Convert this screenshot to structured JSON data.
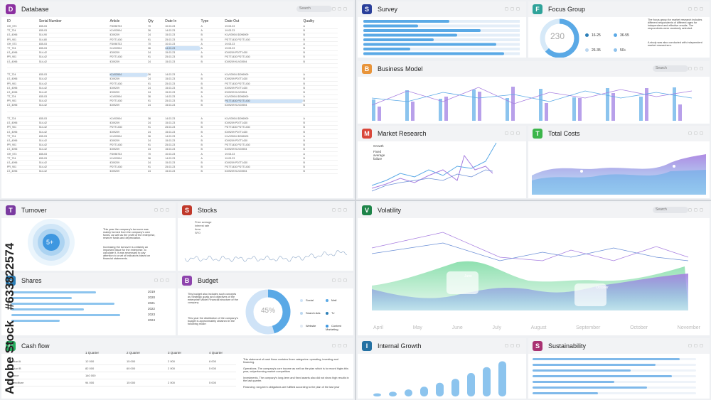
{
  "colors": {
    "blue": "#5aa9e6",
    "purple": "#a77ee0",
    "green": "#8fe0b0",
    "db": "#8b2fa0",
    "survey": "#2a3f9a",
    "focus": "#2fa39a",
    "business": "#e8943a",
    "market": "#d9473a",
    "costs": "#3bb54a",
    "turnover": "#7a3aa0",
    "stocks": "#c0392b",
    "shares": "#2c7fb8",
    "budget": "#8e44ad",
    "cashflow": "#27ae60",
    "volatility": "#1e8449",
    "growth": "#2471a3",
    "sustain": "#a93272"
  },
  "database": {
    "badge": "D",
    "title": "Database",
    "search": "Search",
    "columns": [
      "ID",
      "Serial Number",
      "Article",
      "Qty",
      "Date In",
      "Type",
      "Date Out",
      "Quality"
    ],
    "rows": [
      [
        "GH_573",
        "835-03",
        "FD098733",
        "70",
        "10.03.23",
        "A",
        "19.03.23",
        "A"
      ],
      [
        "TT_724",
        "835-03",
        "KLV03904",
        "36",
        "14.03.23",
        "A",
        "19.03.23",
        "B"
      ],
      [
        "LS_4096",
        "514-90",
        "ID09209",
        "24",
        "15.03.23",
        "B",
        "KLV03904 ID096909",
        "B"
      ],
      [
        "PR_901",
        "514-80",
        "PD7T1430",
        "91",
        "25.03.23",
        "B",
        "PD7T1430 PD7T1430",
        "B"
      ],
      [
        "GH_573",
        "835-03",
        "FD098733",
        "70",
        "10.03.23",
        "A",
        "19.03.23",
        "A"
      ],
      [
        "TT_724",
        "835-03",
        "KLV03904",
        "36",
        "14.03.23",
        "A",
        "19.03.23",
        "B"
      ],
      [
        "LS_4096",
        "514-42",
        "ID09209",
        "24",
        "15.03.23",
        "A",
        "ID09209 PD7T1430",
        "B"
      ],
      [
        "PR_901",
        "514-42",
        "PD7T1430",
        "91",
        "25.03.23",
        "B",
        "PD7T1430 PD7T1430",
        "B"
      ],
      [
        "LS_4096",
        "514-42",
        "ID09209",
        "24",
        "15.03.23",
        "B",
        "ID09209 KLV03904",
        "B"
      ],
      [
        "",
        "",
        "",
        "",
        "",
        "",
        "",
        ""
      ],
      [
        "",
        "",
        "",
        "",
        "",
        "",
        "",
        ""
      ],
      [
        "TT_724",
        "835-03",
        "KLV03904",
        "36",
        "14.03.23",
        "A",
        "KLV03904 ID096909",
        "A"
      ],
      [
        "LS_4096",
        "514-42",
        "ID09209",
        "24",
        "15.03.23",
        "B",
        "ID09209 PD7T1430",
        "B"
      ],
      [
        "PR_901",
        "514-42",
        "PD7T1430",
        "91",
        "25.03.23",
        "B",
        "PD7T1430 PD7T1430",
        "B"
      ],
      [
        "LS_4096",
        "514-42",
        "ID09209",
        "24",
        "15.03.23",
        "B",
        "ID09209 PD7T1430",
        "B"
      ],
      [
        "LS_4096",
        "514-42",
        "ID09209",
        "24",
        "15.03.23",
        "B",
        "ID09209 KLV03904",
        "B"
      ],
      [
        "TT_724",
        "835-03",
        "KLV03904",
        "36",
        "14.03.23",
        "A",
        "KLV03904 ID096909",
        "A"
      ],
      [
        "PR_901",
        "514-42",
        "PD7T1430",
        "91",
        "25.03.23",
        "B",
        "PD7T1430 PD7T1430",
        "B"
      ],
      [
        "LS_4096",
        "514-42",
        "ID09209",
        "24",
        "15.03.23",
        "B",
        "ID09209 KLV03904",
        "B"
      ],
      [
        "",
        "",
        "",
        "",
        "",
        "",
        "",
        ""
      ],
      [
        "",
        "",
        "",
        "",
        "",
        "",
        "",
        ""
      ],
      [
        "TT_724",
        "835-03",
        "KLV03904",
        "36",
        "14.03.23",
        "A",
        "KLV03904 ID096909",
        "A"
      ],
      [
        "LS_4096",
        "514-42",
        "ID09209",
        "24",
        "15.03.23",
        "B",
        "ID09209 PD7T1430",
        "B"
      ],
      [
        "PR_901",
        "514-42",
        "PD7T1430",
        "91",
        "25.03.23",
        "B",
        "PD7T1430 PD7T1430",
        "B"
      ],
      [
        "LS_4096",
        "514-42",
        "ID09209",
        "24",
        "15.03.23",
        "B",
        "ID09209 PD7T1430",
        "B"
      ],
      [
        "TT_724",
        "835-03",
        "KLV03904",
        "36",
        "14.03.23",
        "A",
        "KLV03904 ID096909",
        "A"
      ],
      [
        "LS_4096",
        "514-42",
        "ID09209",
        "24",
        "15.03.23",
        "B",
        "ID09209 PD7T1430",
        "B"
      ],
      [
        "PR_901",
        "514-42",
        "PD7T1430",
        "91",
        "25.03.23",
        "B",
        "PD7T1430 PD7T1430",
        "B"
      ],
      [
        "LS_4096",
        "514-42",
        "ID09209",
        "24",
        "15.03.23",
        "B",
        "ID09209 KLV03904",
        "B"
      ],
      [
        "GH_573",
        "835-03",
        "FD098733",
        "70",
        "10.03.23",
        "A",
        "19.03.23",
        "A"
      ],
      [
        "TT_724",
        "835-03",
        "KLV03904",
        "36",
        "14.03.23",
        "A",
        "19.03.23",
        "B"
      ],
      [
        "LS_4096",
        "514-42",
        "ID09209",
        "24",
        "15.03.23",
        "B",
        "ID09209 PD7T1430",
        "B"
      ],
      [
        "PR_901",
        "514-42",
        "PD7T1430",
        "91",
        "25.03.23",
        "B",
        "PD7T1430 PD7T1430",
        "B"
      ],
      [
        "LS_4096",
        "514-42",
        "ID09209",
        "24",
        "15.03.23",
        "B",
        "ID09209 KLV03904",
        "B"
      ]
    ]
  },
  "survey": {
    "badge": "S",
    "title": "Survey",
    "bars": [
      0.55,
      0.35,
      0.75,
      0.6,
      0.45,
      0.85,
      0.3,
      0.9
    ]
  },
  "focus": {
    "badge": "F",
    "title": "Focus Group",
    "value": "230",
    "legend": [
      "16-25",
      "36-55",
      "26-35",
      "50+"
    ],
    "text1": "The focus group for market research includes different respondents of different ages for independent and effective results. The respondents were randomly selected.",
    "text2": "A study was also conducted with independent market researchers."
  },
  "business": {
    "badge": "B",
    "title": "Business Model",
    "search": "Search"
  },
  "market": {
    "badge": "M",
    "title": "Market Research",
    "growth": "Growth",
    "fixed": "Fixed average failure"
  },
  "costs": {
    "badge": "T",
    "title": "Total Costs"
  },
  "turnover": {
    "badge": "T",
    "title": "Turnover",
    "center": "5+",
    "text1": "This year the company's turnover was mainly formed from the company's own funds, as well as the profit of the enterprise, reserve funds and depreciation.",
    "text2": "Increasing the turnover is certainly an important issue for the enterprise, to calculate it, it was necessary to pay attention to a set of indicators based on financial statements."
  },
  "stocks": {
    "badge": "S",
    "title": "Stocks",
    "legend": [
      "Price average",
      "Interest rate",
      "Area",
      "SFO"
    ]
  },
  "shares": {
    "badge": "S",
    "title": "Shares",
    "years": [
      "2019",
      "2020",
      "2021",
      "2022",
      "2023",
      "2024"
    ],
    "bars": [
      0.7,
      0.5,
      0.85,
      0.6,
      0.9,
      0.4
    ]
  },
  "budget": {
    "badge": "B",
    "title": "Budget",
    "value": "45%",
    "text1": "This budget also includes such concepts as Strategic goals and objectives of the enterprise Model Financial structure of the company",
    "text2": "This year the distribution of the company's budget is approximately obtained in the following mode:",
    "legend": [
      "Social",
      "Mail",
      "Search Ads",
      "Tv",
      "Website",
      "Content Marketing"
    ]
  },
  "cashflow": {
    "badge": "C",
    "title": "Cash flow",
    "cols": [
      "1 Quarter",
      "2 Quarter",
      "3 Quarter",
      "4 Quarter"
    ],
    "rows": [
      [
        "Product A",
        "12 000",
        "15 000",
        "2 000",
        "8 000"
      ],
      [
        "Product B",
        "82 000",
        "60 000",
        "2 000",
        "5 000"
      ],
      [
        "Balance",
        "140 000",
        "",
        "",
        ""
      ],
      [
        "Expenditure",
        "94 000",
        "15 000",
        "2 000",
        "5 000"
      ]
    ],
    "texts": [
      "This statement of cash flows contains three categories: operating, investing and financing.",
      "Operations. The company's core income as well as the plan which is to record highs this year, outperforming market competitors",
      "Investments. The company's long-term and fixed assets also did not show high results in the last quarter.",
      "Financing: long-term obligations are fulfilled according to the plan of the last year"
    ]
  },
  "volatility": {
    "badge": "V",
    "title": "Volatility",
    "search": "Search",
    "months": [
      "April",
      "May",
      "June",
      "July",
      "August",
      "September",
      "October",
      "November"
    ],
    "tip1": "June",
    "tip2": "October"
  },
  "growth": {
    "badge": "I",
    "title": "Internal Growth",
    "bars": [
      0.08,
      0.12,
      0.18,
      0.25,
      0.35,
      0.45,
      0.6,
      0.75,
      0.9
    ]
  },
  "sustain": {
    "badge": "S",
    "title": "Sustainability",
    "bars": [
      0.9,
      0.75,
      0.6,
      0.85,
      0.5,
      0.7,
      0.4
    ]
  },
  "watermark": {
    "brand": "Adobe Stock",
    "id": "#633822574"
  }
}
